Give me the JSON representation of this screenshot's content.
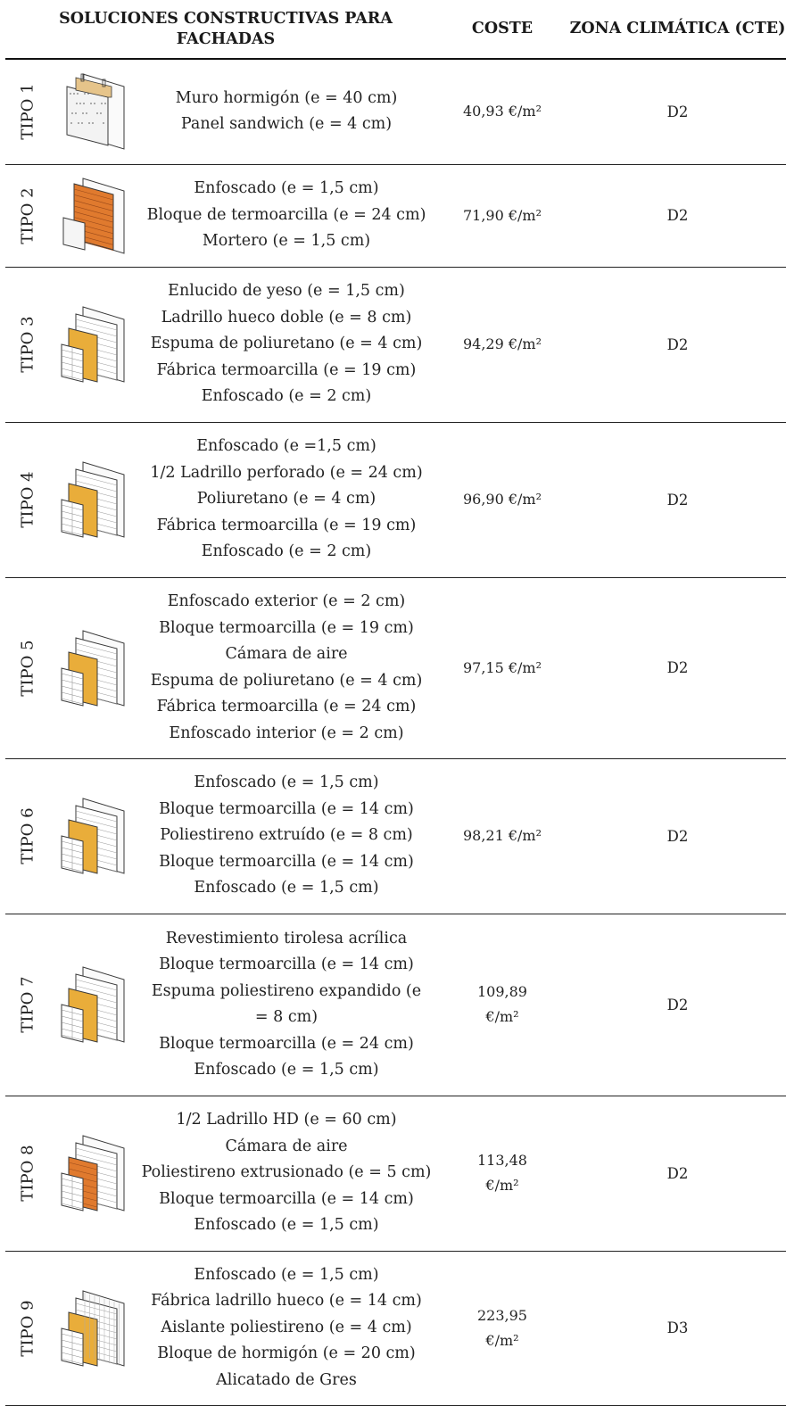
{
  "header": {
    "title": "SOLUCIONES CONSTRUCTIVAS PARA FACHADAS",
    "cost": "COSTE",
    "zone": "ZONA CLIMÁTICA (CTE)"
  },
  "rows": [
    {
      "tipo": "TIPO 1",
      "icon": "concrete-wall-sandwich-panel-icon",
      "layers": [
        "Muro hormigón (e = 40 cm)",
        "Panel sandwich (e = 4 cm)"
      ],
      "cost": "40,93 €/m²",
      "zone": "D2"
    },
    {
      "tipo": "TIPO 2",
      "icon": "brick-block-wall-icon",
      "layers": [
        "Enfoscado (e = 1,5 cm)",
        "Bloque de termoarcilla (e = 24 cm)",
        "Mortero (e = 1,5 cm)"
      ],
      "cost": "71,90 €/m²",
      "zone": "D2"
    },
    {
      "tipo": "TIPO 3",
      "icon": "insulated-block-wall-icon",
      "layers": [
        "Enlucido de yeso (e = 1,5 cm)",
        "Ladrillo hueco doble (e = 8 cm)",
        "Espuma de poliuretano (e = 4 cm)",
        "Fábrica termoarcilla (e = 19 cm)",
        "Enfoscado (e = 2 cm)"
      ],
      "cost": "94,29 €/m²",
      "zone": "D2"
    },
    {
      "tipo": "TIPO 4",
      "icon": "insulated-block-wall-icon",
      "layers": [
        "Enfoscado  (e =1,5 cm)",
        "1/2 Ladrillo perforado (e = 24 cm)",
        "Poliuretano (e = 4 cm)",
        "Fábrica termoarcilla (e = 19 cm)",
        "Enfoscado (e = 2 cm)"
      ],
      "cost": "96,90 €/m²",
      "zone": "D2"
    },
    {
      "tipo": "TIPO 5",
      "icon": "cavity-block-wall-icon",
      "layers": [
        "Enfoscado exterior  (e = 2 cm)",
        "Bloque termoarcilla (e = 19 cm)",
        "Cámara de aire",
        "Espuma de poliuretano (e = 4 cm)",
        "Fábrica termoarcilla (e = 24 cm)",
        "Enfoscado interior  (e = 2 cm)"
      ],
      "cost": "97,15 €/m²",
      "zone": "D2"
    },
    {
      "tipo": "TIPO 6",
      "icon": "insulated-block-wall-icon",
      "layers": [
        "Enfoscado (e = 1,5 cm)",
        "Bloque termoarcilla (e = 14 cm)",
        "Poliestireno extruído (e = 8 cm)",
        "Bloque termoarcilla (e = 14 cm)",
        "Enfoscado  (e = 1,5 cm)"
      ],
      "cost": "98,21 €/m²",
      "zone": "D2"
    },
    {
      "tipo": "TIPO 7",
      "icon": "insulated-block-wall-icon",
      "layers": [
        "Revestimiento tirolesa acrílica",
        "Bloque termoarcilla (e = 14 cm)",
        "Espuma poliestireno expandido (e",
        "= 8 cm)",
        "Bloque termoarcilla (e = 24 cm)",
        "Enfoscado  (e = 1,5 cm)"
      ],
      "cost_lines": [
        "109,89",
        "€/m²"
      ],
      "zone": "D2"
    },
    {
      "tipo": "TIPO 8",
      "icon": "brick-cavity-wall-icon",
      "layers": [
        "1/2 Ladrillo HD (e = 60 cm)",
        "Cámara de aire",
        "Poliestireno extrusionado (e = 5 cm)",
        "Bloque termoarcilla (e = 14 cm)",
        "Enfoscado  (e = 1,5 cm)"
      ],
      "cost_lines": [
        "113,48",
        "€/m²"
      ],
      "zone": "D2"
    },
    {
      "tipo": "TIPO 9",
      "icon": "tiled-block-wall-icon",
      "layers": [
        "Enfoscado (e = 1,5 cm)",
        "Fábrica ladrillo hueco (e = 14 cm)",
        "Aislante poliestireno  (e = 4 cm)",
        "Bloque de hormigón (e = 20 cm)",
        "Alicatado de Gres"
      ],
      "cost_lines": [
        "223,95",
        "€/m²"
      ],
      "zone": "D3"
    }
  ],
  "colors": {
    "insulation": "#e9ad3a",
    "brick": "#e07a2e",
    "line": "#3a3a3a"
  }
}
